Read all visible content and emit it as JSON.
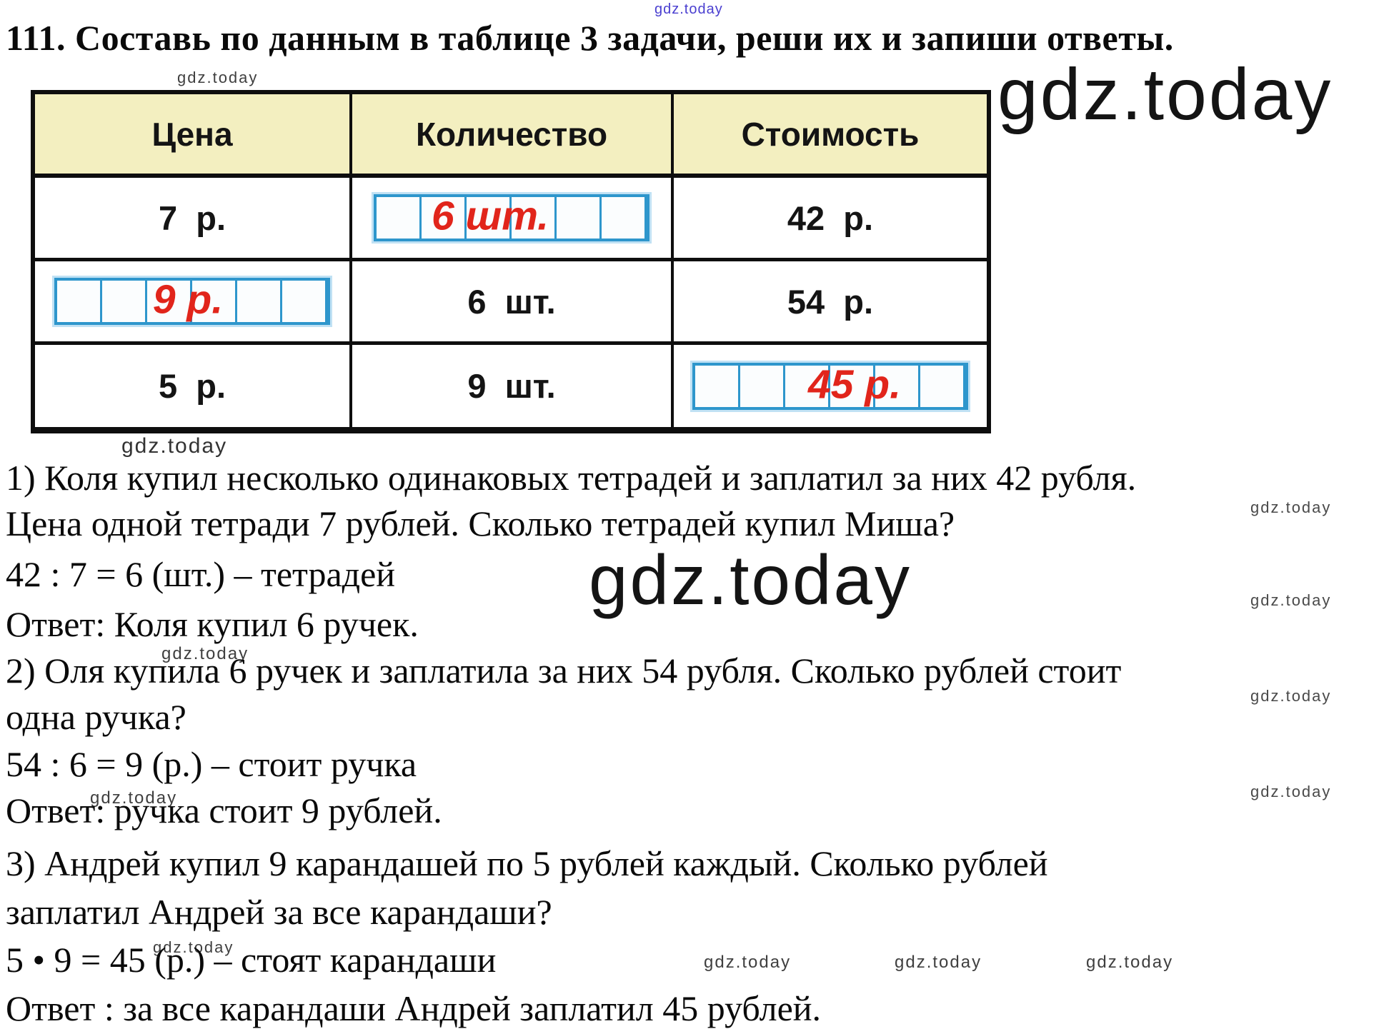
{
  "watermark": {
    "text": "gdz.today"
  },
  "title": "111. Составь по данным в таблице 3 задачи, реши их и запиши ответы.",
  "table": {
    "headers": [
      "Цена",
      "Количество",
      "Стоимость"
    ],
    "rows": [
      {
        "price": "7  р.",
        "quantity_answer": "6 шт.",
        "cost": "42  р."
      },
      {
        "price_answer": "9 р.",
        "quantity": "6  шт.",
        "cost": "54  р."
      },
      {
        "price": "5  р.",
        "quantity": "9  шт.",
        "cost_answer": "45 р."
      }
    ]
  },
  "solution_lines": [
    "1) Коля купил несколько одинаковых тетрадей и заплатил за них 42 рубля.",
    "Цена одной тетради 7 рублей. Сколько тетрадей купил Миша?",
    "42 : 7 = 6 (шт.) – тетрадей",
    "Ответ: Коля купил 6 ручек.",
    "2) Оля купила 6 ручек и заплатила за них 54 рубля. Сколько рублей стоит",
    "одна ручка?",
    "54 : 6 = 9 (р.) – стоит ручка",
    "Ответ: ручка стоит 9 рублей.",
    "3) Андрей купил 9 карандашей по 5 рублей каждый. Сколько рублей",
    "заплатил Андрей за все карандаши?",
    "5 • 9 = 45 (р.) – стоят карандаши",
    "Ответ : за все карандаши Андрей заплатил 45 рублей."
  ],
  "colors": {
    "header_bg": "#f3efc0",
    "grid_blue": "#2e96cc",
    "answer_red": "#e1251b",
    "watermark_blue": "#4a3fd0"
  }
}
